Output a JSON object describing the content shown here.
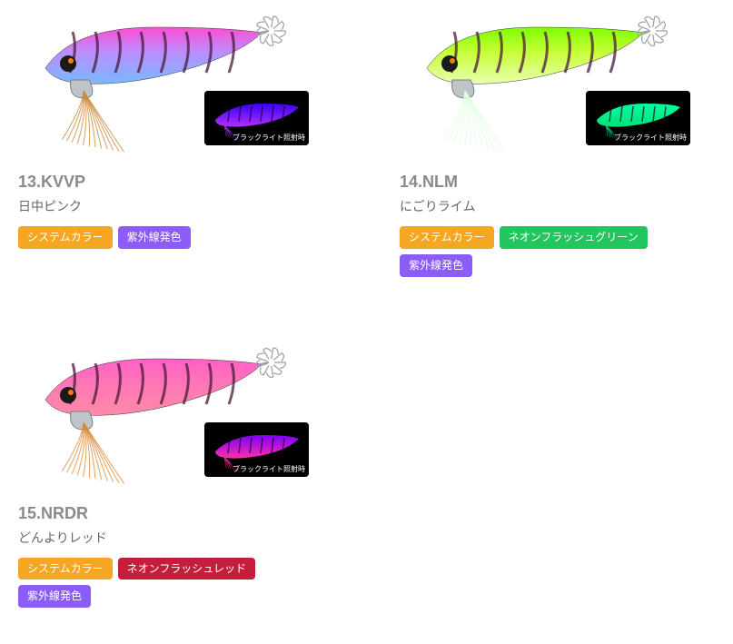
{
  "thumbnail_label": "ブラックライト照射時",
  "tag_colors": {
    "system": "#f5a623",
    "uv": "#8b5cf6",
    "neon_green": "#22c55e",
    "neon_red": "#c41e3a"
  },
  "lure_palettes": {
    "kvvp": {
      "top": "#ff4dd2",
      "mid": "#b98fff",
      "bottom": "#7ab8ff",
      "skirt": "#c98a3a",
      "glow_top": "#3a00ff",
      "glow_body": "#b030ff"
    },
    "nlm": {
      "top": "#7fff00",
      "mid": "#c8ff3a",
      "bottom": "#e8ffb0",
      "skirt": "#dfffe0",
      "glow_top": "#00ff9c",
      "glow_body": "#00e07a"
    },
    "nrdr": {
      "top": "#ff5ec7",
      "mid": "#ff77b5",
      "bottom": "#ff8aa8",
      "skirt": "#d98a3a",
      "glow_top": "#7a00ff",
      "glow_body": "#ff2ea8"
    }
  },
  "products": [
    {
      "number": "13.",
      "code": "KVVP",
      "name": "日中ピンク",
      "palette": "kvvp",
      "tags": [
        {
          "label": "システムカラー",
          "color_key": "system"
        },
        {
          "label": "紫外線発色",
          "color_key": "uv"
        }
      ]
    },
    {
      "number": "14.",
      "code": "NLM",
      "name": "にごりライム",
      "palette": "nlm",
      "tags": [
        {
          "label": "システムカラー",
          "color_key": "system"
        },
        {
          "label": "ネオンフラッシュグリーン",
          "color_key": "neon_green"
        },
        {
          "label": "紫外線発色",
          "color_key": "uv"
        }
      ]
    },
    {
      "number": "15.",
      "code": "NRDR",
      "name": "どんよりレッド",
      "palette": "nrdr",
      "tags": [
        {
          "label": "システムカラー",
          "color_key": "system"
        },
        {
          "label": "ネオンフラッシュレッド",
          "color_key": "neon_red"
        },
        {
          "label": "紫外線発色",
          "color_key": "uv"
        }
      ]
    }
  ]
}
